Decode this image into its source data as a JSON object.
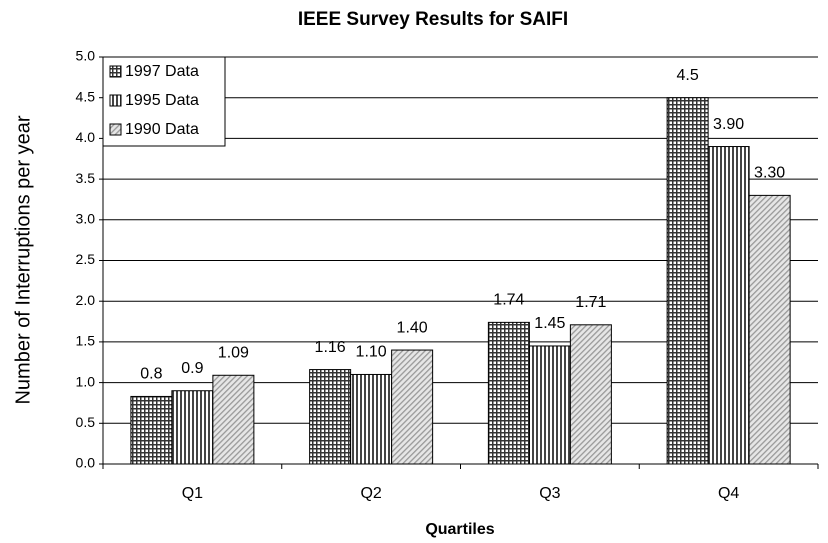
{
  "chart_data": {
    "type": "bar",
    "title": "IEEE Survey Results for SAIFI",
    "x_label": "Quartiles",
    "y_label": "Number of Interruptions per year",
    "categories": [
      "Q1",
      "Q2",
      "Q3",
      "Q4"
    ],
    "series": [
      {
        "name": "1997 Data",
        "color": "#333333",
        "pattern": "checker",
        "values": [
          0.83,
          1.16,
          1.74,
          4.5
        ],
        "value_labels": [
          "0.8",
          "1.16",
          "1.74",
          "4.5"
        ]
      },
      {
        "name": "1995 Data",
        "color": "#444444",
        "pattern": "vertical",
        "values": [
          0.9,
          1.1,
          1.45,
          3.9
        ],
        "value_labels": [
          "0.9",
          "1.10",
          "1.45",
          "3.90"
        ]
      },
      {
        "name": "1990 Data",
        "color": "#999999",
        "pattern": "diagonal",
        "values": [
          1.09,
          1.4,
          1.71,
          3.3
        ],
        "value_labels": [
          "1.09",
          "1.40",
          "1.71",
          "3.30"
        ]
      }
    ],
    "ylim": [
      0,
      5
    ],
    "yticks": [
      {
        "value": 0,
        "label": "0.0"
      },
      {
        "value": 0.5,
        "label": "0.5"
      },
      {
        "value": 1,
        "label": "1.0"
      },
      {
        "value": 1.5,
        "label": "1.5"
      },
      {
        "value": 2,
        "label": "2.0"
      },
      {
        "value": 2.5,
        "label": "2.5"
      },
      {
        "value": 3,
        "label": "3.0"
      },
      {
        "value": 3.5,
        "label": "3.5"
      },
      {
        "value": 4,
        "label": "4.0"
      },
      {
        "value": 4.5,
        "label": "4.5"
      },
      {
        "value": 5,
        "label": "5.0"
      }
    ],
    "grid": true,
    "legend": "top-left"
  }
}
